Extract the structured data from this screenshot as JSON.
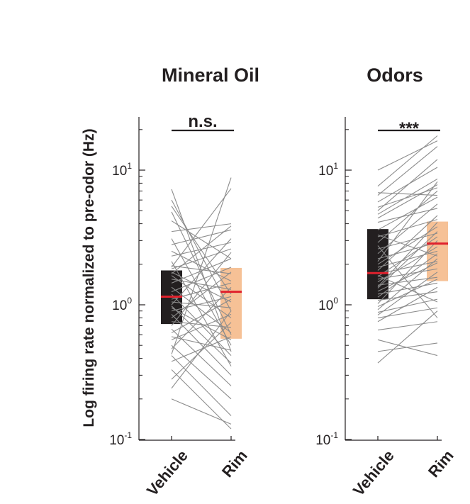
{
  "chart_data": {
    "type": "paired-box",
    "ylabel": "Log firing rate normalized to pre-odor (Hz)",
    "yscale": "log",
    "ylim": [
      0.1,
      25
    ],
    "yticks": [
      {
        "value": 0.1,
        "base": "10",
        "exp": "-1"
      },
      {
        "value": 1,
        "base": "10",
        "exp": "0"
      },
      {
        "value": 10,
        "base": "10",
        "exp": "1"
      }
    ],
    "categories": [
      "Vehicle",
      "Rim"
    ],
    "colors": {
      "vehicle_box": "#231f20",
      "rim_box": "#f6c196",
      "median": "#e0212d",
      "pair_line": "#8c8c8c",
      "axis": "#231f20"
    },
    "panels": [
      {
        "title": "Mineral Oil",
        "significance": "n.s.",
        "boxes": {
          "Vehicle": {
            "q1": 0.72,
            "median": 1.15,
            "q3": 1.8
          },
          "Rim": {
            "q1": 0.56,
            "median": 1.25,
            "q3": 1.88
          }
        },
        "pairs": [
          [
            7.2,
            0.45
          ],
          [
            6.0,
            0.9
          ],
          [
            5.4,
            1.2
          ],
          [
            4.9,
            0.6
          ],
          [
            4.2,
            2.2
          ],
          [
            3.5,
            4.0
          ],
          [
            3.1,
            0.5
          ],
          [
            2.8,
            3.6
          ],
          [
            2.5,
            1.5
          ],
          [
            2.3,
            2.9
          ],
          [
            2.1,
            0.35
          ],
          [
            1.95,
            1.7
          ],
          [
            1.85,
            2.6
          ],
          [
            1.75,
            1.05
          ],
          [
            1.65,
            0.8
          ],
          [
            1.55,
            1.3
          ],
          [
            1.45,
            2.2
          ],
          [
            1.35,
            0.62
          ],
          [
            1.25,
            1.9
          ],
          [
            1.2,
            0.42
          ],
          [
            1.1,
            1.45
          ],
          [
            1.05,
            0.95
          ],
          [
            1.0,
            3.1
          ],
          [
            0.95,
            0.55
          ],
          [
            0.9,
            1.15
          ],
          [
            0.85,
            0.3
          ],
          [
            0.8,
            1.75
          ],
          [
            0.75,
            0.68
          ],
          [
            0.7,
            2.45
          ],
          [
            0.66,
            0.25
          ],
          [
            0.62,
            1.1
          ],
          [
            0.58,
            0.46
          ],
          [
            0.55,
            0.85
          ],
          [
            0.5,
            0.2
          ],
          [
            0.47,
            1.35
          ],
          [
            0.42,
            0.15
          ],
          [
            0.38,
            0.58
          ],
          [
            0.33,
            0.12
          ],
          [
            0.28,
            0.74
          ],
          [
            0.24,
            0.9
          ],
          [
            0.2,
            0.13
          ],
          [
            0.43,
            8.8
          ],
          [
            1.9,
            7.3
          ],
          [
            1.7,
            3.85
          ],
          [
            0.98,
            0.37
          ]
        ]
      },
      {
        "title": "Odors",
        "significance": "***",
        "boxes": {
          "Vehicle": {
            "q1": 1.1,
            "median": 1.72,
            "q3": 3.65
          },
          "Rim": {
            "q1": 1.5,
            "median": 2.85,
            "q3": 4.15
          }
        },
        "pairs": [
          [
            7.6,
            18.0
          ],
          [
            6.5,
            15.0
          ],
          [
            5.8,
            10.5
          ],
          [
            5.3,
            7.4
          ],
          [
            4.7,
            8.6
          ],
          [
            4.1,
            5.2
          ],
          [
            3.6,
            6.3
          ],
          [
            3.2,
            4.3
          ],
          [
            2.9,
            7.0
          ],
          [
            2.6,
            3.4
          ],
          [
            2.4,
            5.6
          ],
          [
            2.2,
            2.9
          ],
          [
            2.0,
            3.8
          ],
          [
            1.9,
            2.5
          ],
          [
            1.8,
            4.6
          ],
          [
            1.7,
            2.1
          ],
          [
            1.62,
            3.2
          ],
          [
            1.55,
            1.85
          ],
          [
            1.48,
            2.7
          ],
          [
            1.4,
            1.6
          ],
          [
            1.33,
            3.5
          ],
          [
            1.26,
            2.05
          ],
          [
            1.2,
            1.45
          ],
          [
            1.14,
            2.4
          ],
          [
            1.08,
            1.25
          ],
          [
            1.02,
            3.0
          ],
          [
            0.97,
            1.55
          ],
          [
            0.92,
            2.2
          ],
          [
            0.88,
            1.1
          ],
          [
            0.84,
            1.75
          ],
          [
            0.8,
            0.95
          ],
          [
            0.75,
            1.35
          ],
          [
            0.65,
            0.75
          ],
          [
            0.55,
            0.42
          ],
          [
            0.45,
            0.52
          ],
          [
            0.37,
            0.9
          ],
          [
            10.0,
            16.5
          ],
          [
            5.0,
            12.0
          ],
          [
            3.3,
            2.3
          ],
          [
            6.8,
            6.5
          ],
          [
            4.4,
            7.8
          ],
          [
            1.65,
            1.05
          ],
          [
            2.75,
            0.8
          ],
          [
            2.1,
            8.2
          ],
          [
            1.36,
            4.1
          ]
        ]
      }
    ]
  }
}
